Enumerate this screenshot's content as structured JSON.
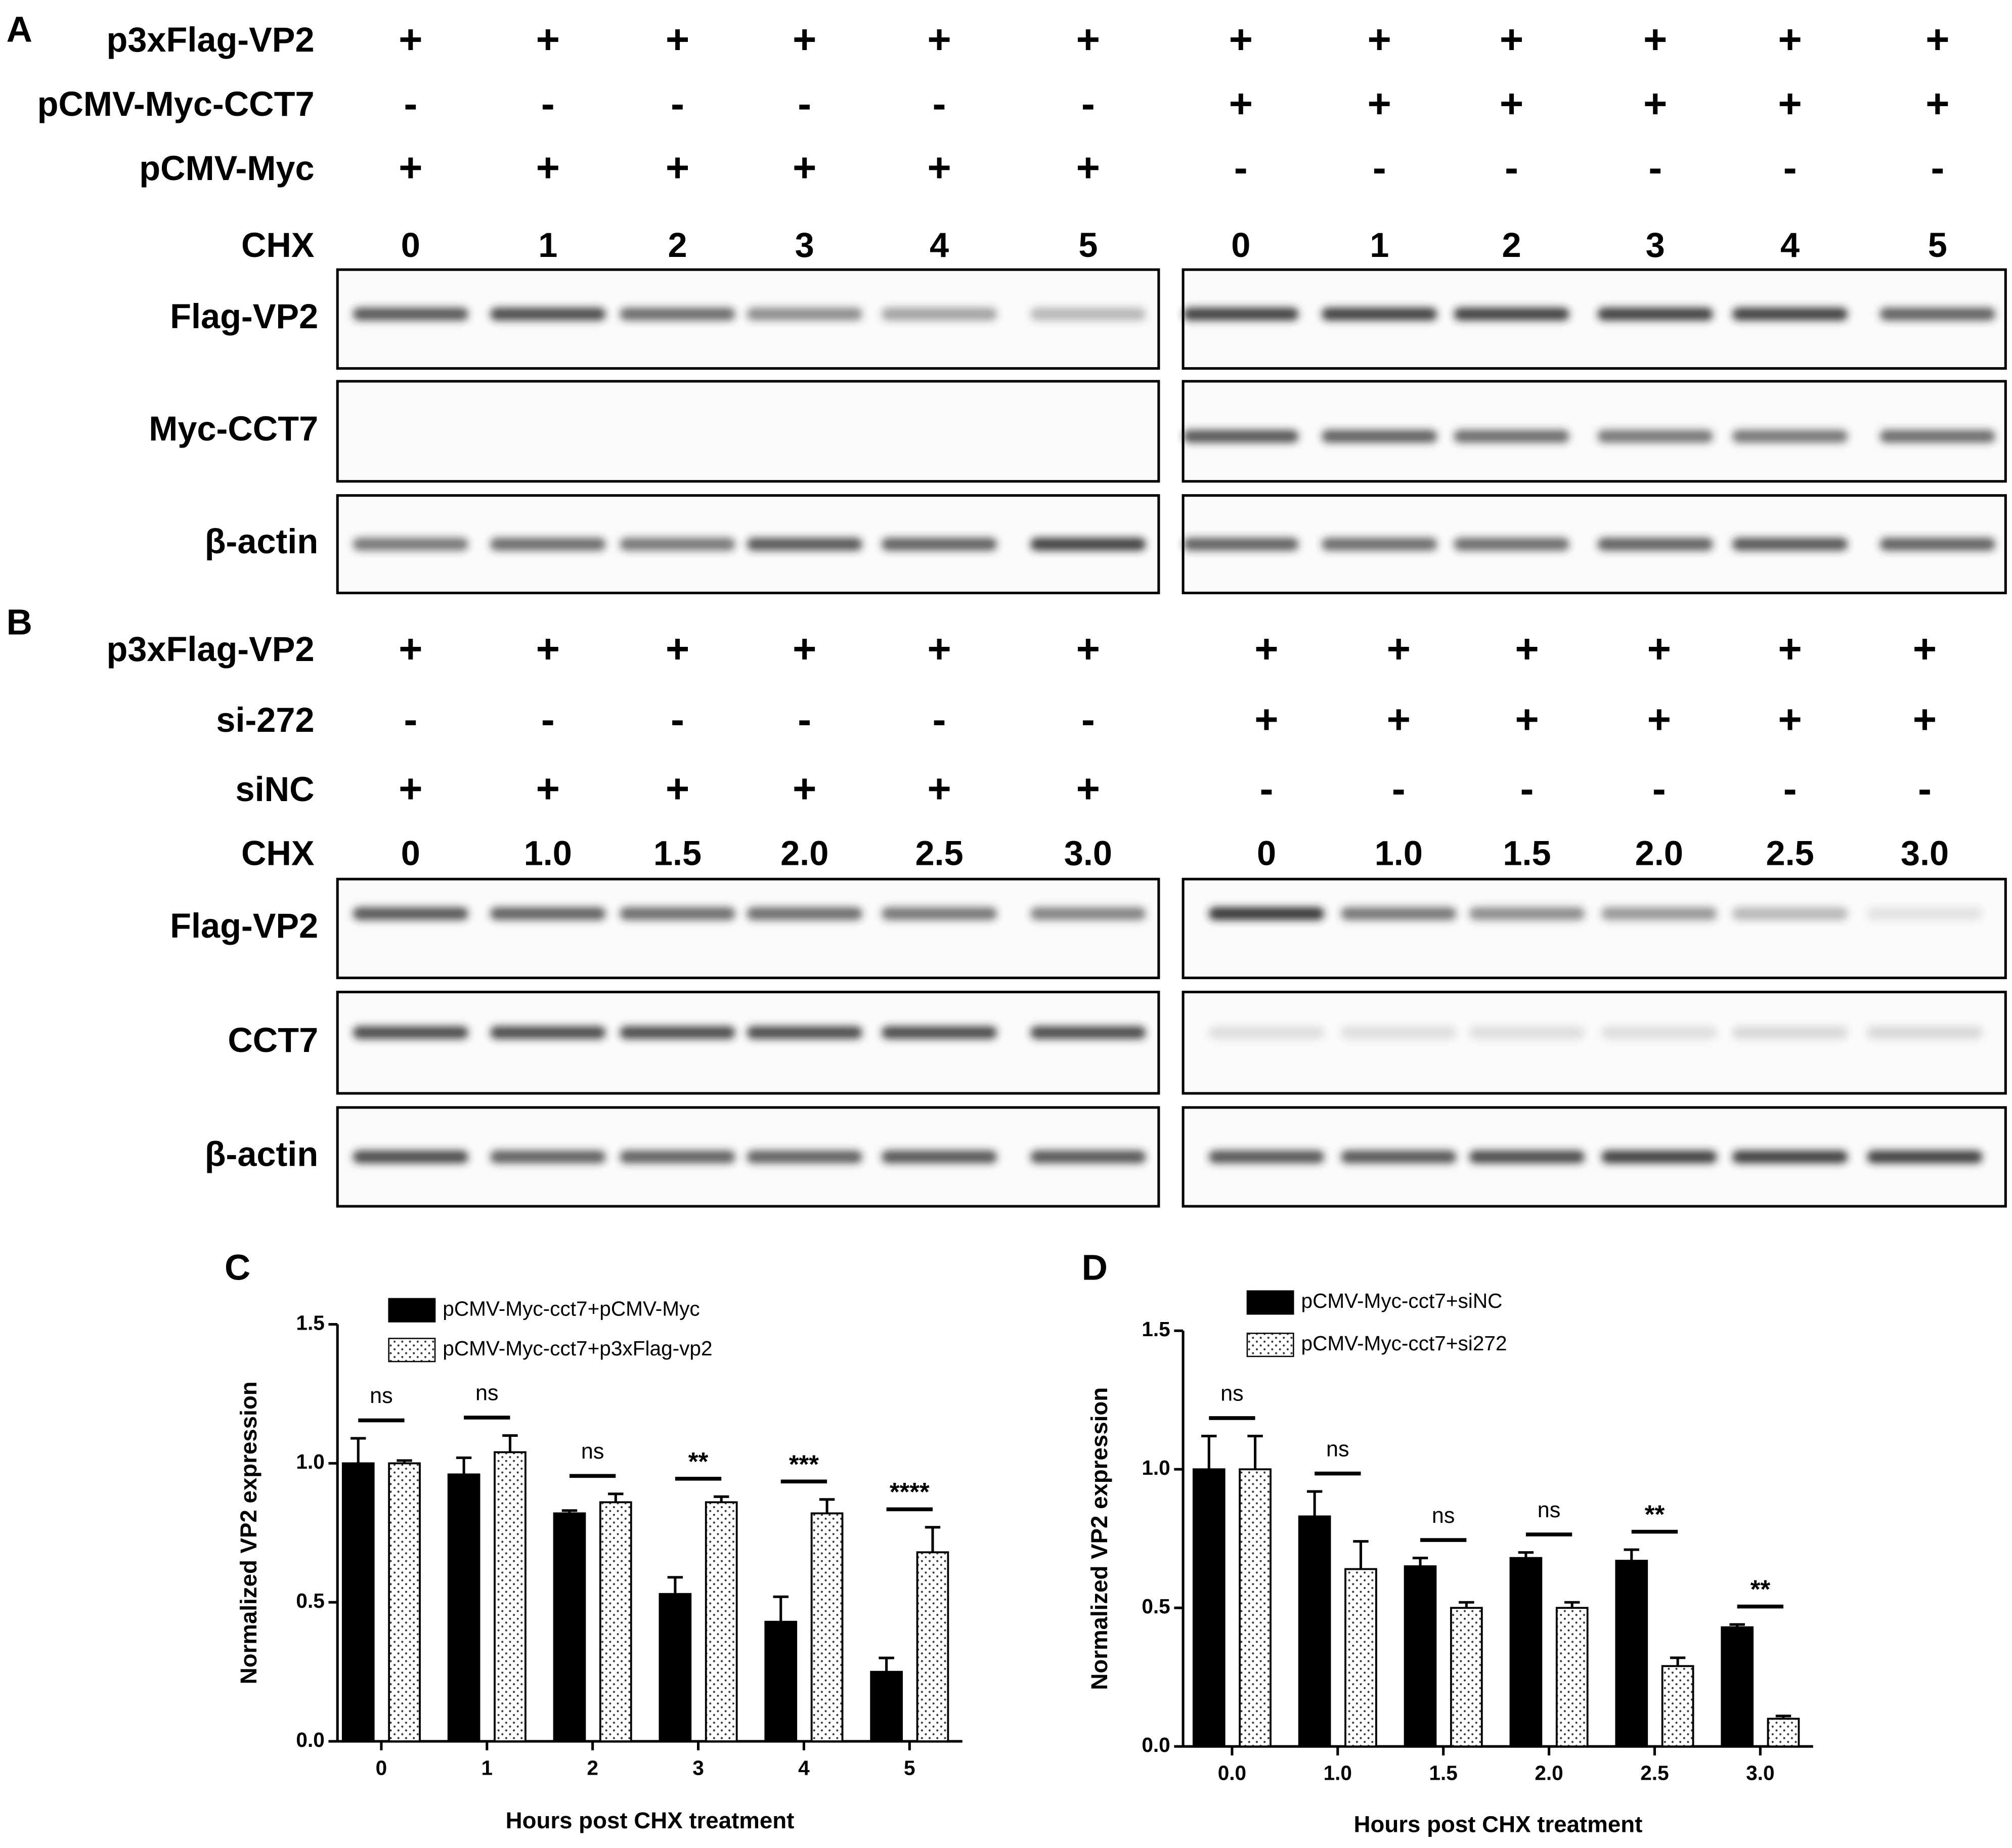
{
  "panels": [
    {
      "label": "A",
      "rows": [
        {
          "label": "p3xFlag-VP2",
          "left": [
            "+",
            "+",
            "+",
            "+",
            "+",
            "+"
          ],
          "right": [
            "+",
            "+",
            "+",
            "+",
            "+",
            "+"
          ]
        },
        {
          "label": "pCMV-Myc-CCT7",
          "left": [
            "-",
            "-",
            "-",
            "-",
            "-",
            "-"
          ],
          "right": [
            "+",
            "+",
            "+",
            "+",
            "+",
            "+"
          ]
        },
        {
          "label": "pCMV-Myc",
          "left": [
            "+",
            "+",
            "+",
            "+",
            "+",
            "+"
          ],
          "right": [
            "-",
            "-",
            "-",
            "-",
            "-",
            "-"
          ]
        }
      ],
      "chx": {
        "label": "CHX",
        "left": [
          "0",
          "1",
          "2",
          "3",
          "4",
          "5"
        ],
        "right": [
          "0",
          "1",
          "2",
          "3",
          "4",
          "5"
        ]
      },
      "blots": [
        "Flag-VP2",
        "Myc-CCT7",
        "β-actin"
      ]
    },
    {
      "label": "B",
      "rows": [
        {
          "label": "p3xFlag-VP2",
          "left": [
            "+",
            "+",
            "+",
            "+",
            "+",
            "+"
          ],
          "right": [
            "+",
            "+",
            "+",
            "+",
            "+",
            "+"
          ]
        },
        {
          "label": "si-272",
          "left": [
            "-",
            "-",
            "-",
            "-",
            "-",
            "-"
          ],
          "right": [
            "+",
            "+",
            "+",
            "+",
            "+",
            "+"
          ]
        },
        {
          "label": "siNC",
          "left": [
            "+",
            "+",
            "+",
            "+",
            "+",
            "+"
          ],
          "right": [
            "-",
            "-",
            "-",
            "-",
            "-",
            "-"
          ]
        }
      ],
      "chx": {
        "label": "CHX",
        "left": [
          "0",
          "1.0",
          "1.5",
          "2.0",
          "2.5",
          "3.0"
        ],
        "right": [
          "0",
          "1.0",
          "1.5",
          "2.0",
          "2.5",
          "3.0"
        ]
      },
      "blots": [
        "Flag-VP2",
        "CCT7",
        "β-actin"
      ]
    }
  ],
  "chart_data": [
    {
      "type": "bar",
      "label": "C",
      "y_label": "Normalized VP2 expression",
      "x_label": "Hours post CHX treatment",
      "categories": [
        "0",
        "1",
        "2",
        "3",
        "4",
        "5"
      ],
      "series": [
        {
          "name": "pCMV-Myc-cct7+pCMV-Myc",
          "color": "#000000",
          "pattern": "solid",
          "values": [
            1.0,
            0.96,
            0.82,
            0.53,
            0.43,
            0.25
          ],
          "errors": [
            0.09,
            0.06,
            0.01,
            0.06,
            0.09,
            0.05
          ]
        },
        {
          "name": "pCMV-Myc-cct7+p3xFlag-vp2",
          "color": "#ffffff",
          "pattern": "dotted",
          "values": [
            1.0,
            1.04,
            0.86,
            0.86,
            0.82,
            0.68
          ],
          "errors": [
            0.01,
            0.06,
            0.03,
            0.02,
            0.05,
            0.09
          ]
        }
      ],
      "significance": [
        "ns",
        "ns",
        "ns",
        "**",
        "***",
        "****"
      ],
      "ylim": [
        0,
        1.5
      ],
      "yticks": [
        {
          "value": 0,
          "label": "0.0"
        },
        0.5,
        {
          "value": 1,
          "label": "1.0"
        },
        1.5
      ]
    },
    {
      "type": "bar",
      "label": "D",
      "y_label": "Normalized VP2 expression",
      "x_label": "Hours post CHX treatment",
      "categories": [
        "0.0",
        "1.0",
        "1.5",
        "2.0",
        "2.5",
        "3.0"
      ],
      "series": [
        {
          "name": "pCMV-Myc-cct7+siNC",
          "color": "#000000",
          "pattern": "solid",
          "values": [
            1.0,
            0.83,
            0.65,
            0.68,
            0.67,
            0.43
          ],
          "errors": [
            0.12,
            0.09,
            0.03,
            0.02,
            0.04,
            0.01
          ]
        },
        {
          "name": "pCMV-Myc-cct7+si272",
          "color": "#ffffff",
          "pattern": "dotted",
          "values": [
            1.0,
            0.64,
            0.5,
            0.5,
            0.29,
            0.1
          ],
          "errors": [
            0.12,
            0.1,
            0.02,
            0.02,
            0.03,
            0.01
          ]
        }
      ],
      "significance": [
        "ns",
        "ns",
        "ns",
        "ns",
        "**",
        "**"
      ],
      "ylim": [
        0,
        1.5
      ],
      "yticks": [
        {
          "value": 0,
          "label": "0.0"
        },
        0.5,
        {
          "value": 1,
          "label": "1.0"
        },
        1.5
      ]
    }
  ]
}
